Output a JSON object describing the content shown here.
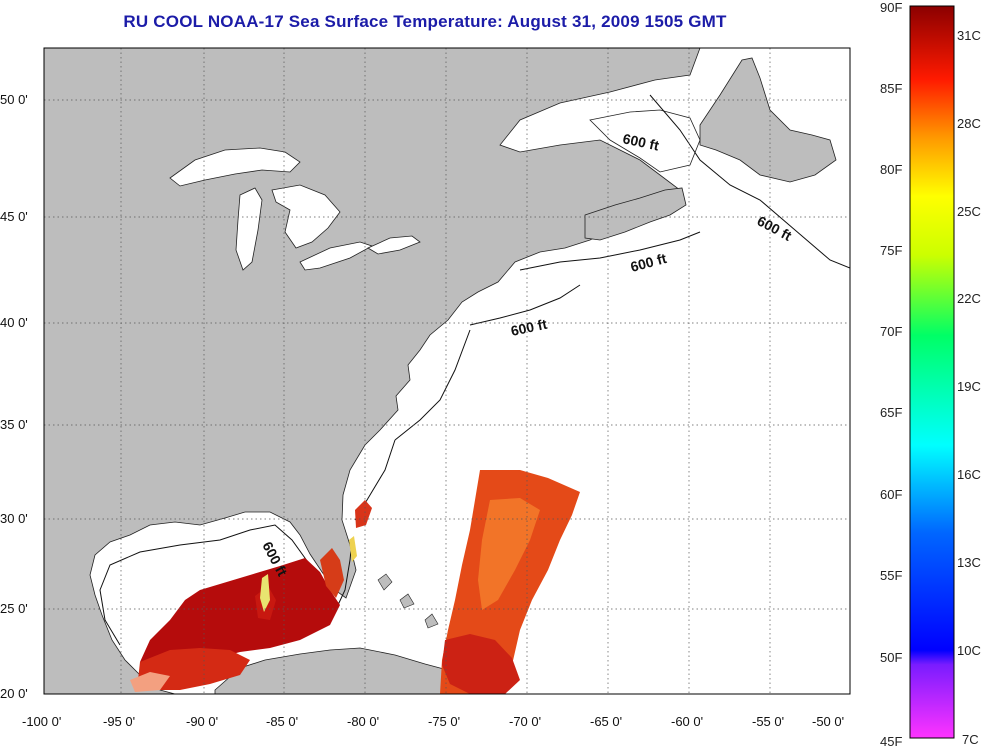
{
  "title": "RU COOL  NOAA-17  Sea Surface Temperature:  August 31, 2009 1505 GMT",
  "map": {
    "lon_range": [
      -100,
      -50
    ],
    "lat_range": [
      20,
      52
    ],
    "lon_ticks": [
      "-100 0'",
      "-95 0'",
      "-90 0'",
      "-85 0'",
      "-80 0'",
      "-75 0'",
      "-70 0'",
      "-65 0'",
      "-60 0'",
      "-55 0'",
      "-50 0'"
    ],
    "lat_ticks": [
      "50 0'",
      "45 0'",
      "40 0'",
      "35 0'",
      "30 0'",
      "25 0'",
      "20 0'"
    ],
    "contour_labels": [
      "600 ft",
      "600 ft",
      "600 ft",
      "600 ft",
      "600 ft"
    ],
    "colors": {
      "land": "#bdbdbd",
      "ocean": "#ffffff",
      "warm_sst": "#d21a12",
      "hot_sst": "#b00808",
      "mid_sst": "#f05a14"
    }
  },
  "colorbar": {
    "f_labels": [
      "90F",
      "85F",
      "80F",
      "75F",
      "70F",
      "65F",
      "60F",
      "55F",
      "50F",
      "45F"
    ],
    "c_labels": [
      "31C",
      "28C",
      "25C",
      "22C",
      "19C",
      "16C",
      "13C",
      "10C",
      "7C"
    ],
    "f_range": [
      45,
      90
    ]
  }
}
